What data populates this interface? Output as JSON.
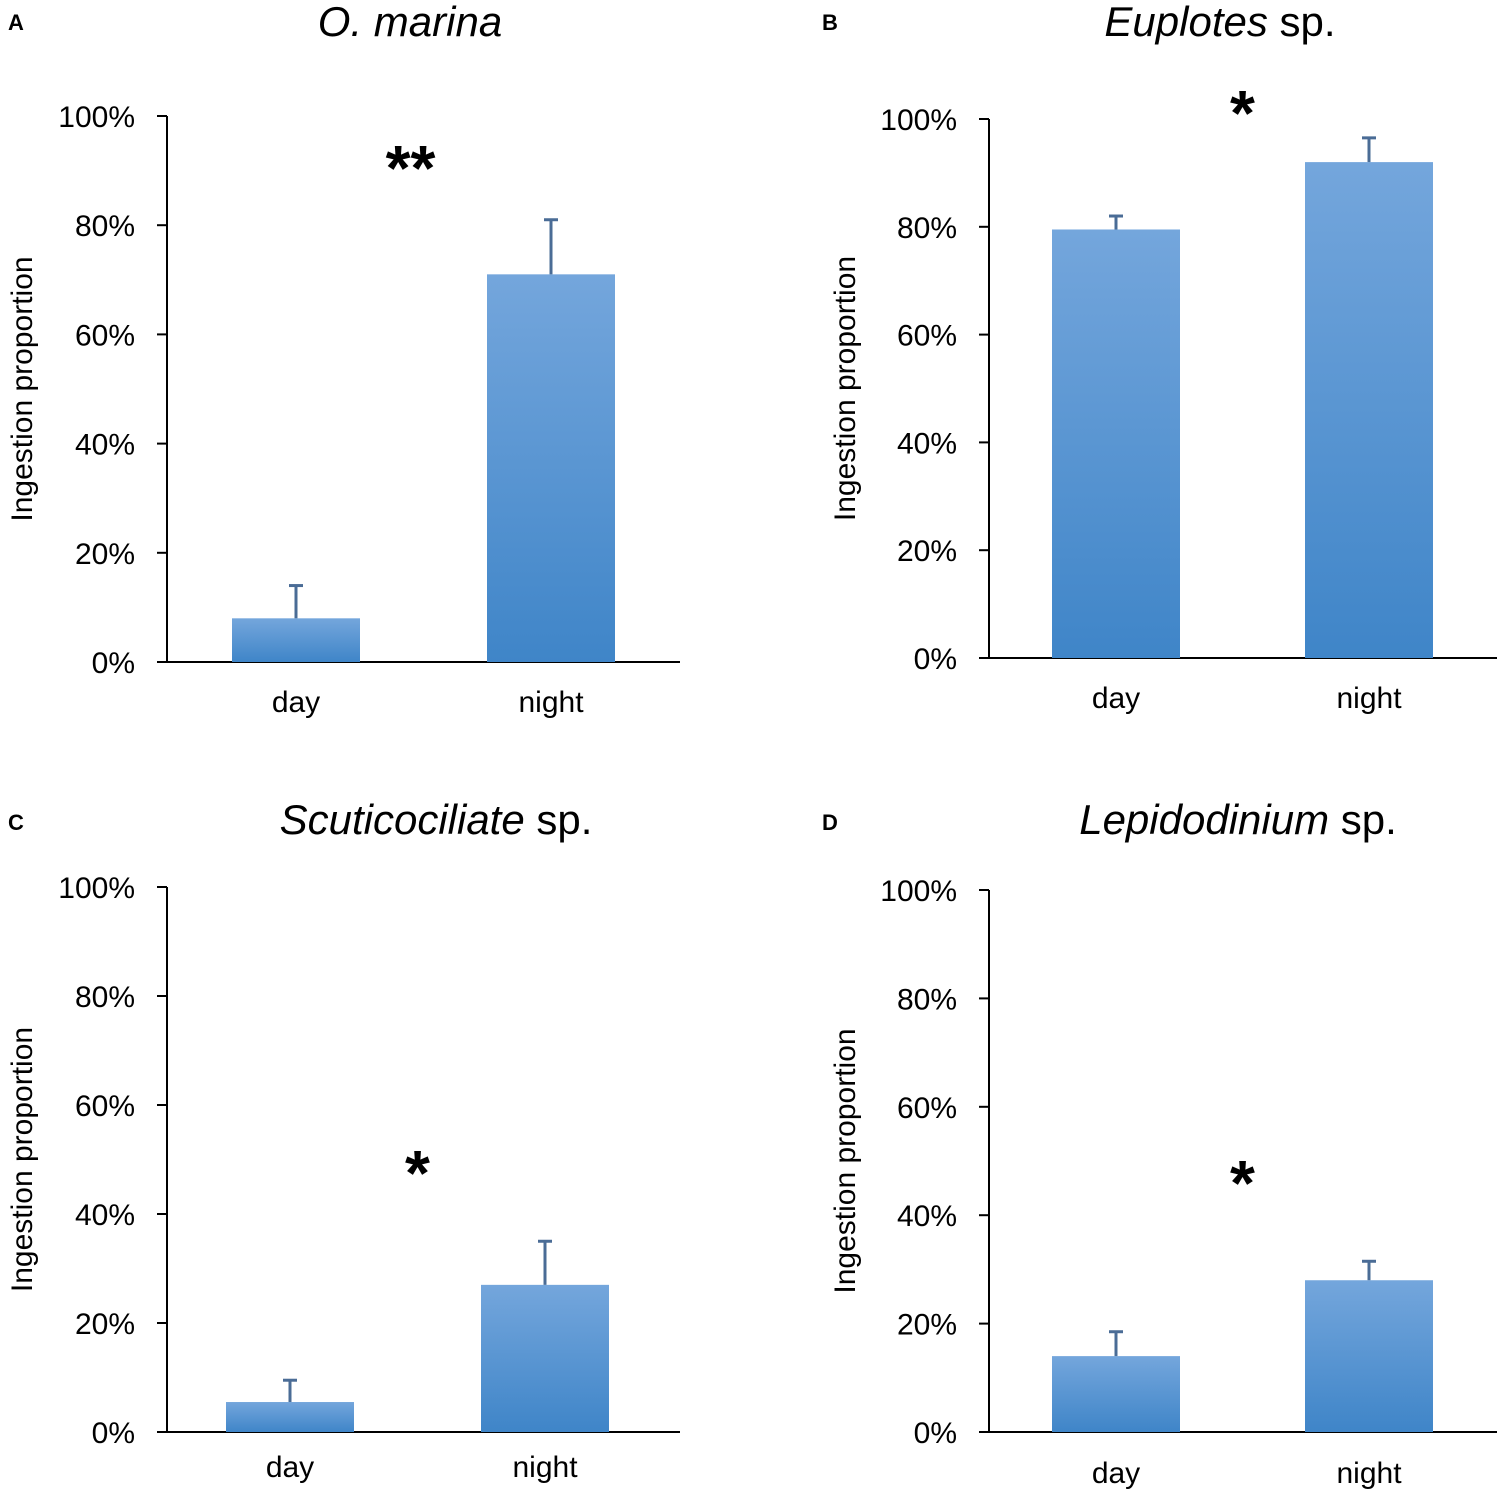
{
  "colors": {
    "bar_top": "#74a6dc",
    "bar_bottom": "#3f85c8",
    "error_bar": "#4a6c96",
    "axis": "#000000"
  },
  "chart_data": [
    {
      "type": "bar",
      "panel": "A",
      "title_italic": "O. marina",
      "title_rest": "",
      "ylabel": "Ingestion proportion",
      "xlabel": "",
      "categories": [
        "day",
        "night"
      ],
      "values": [
        8,
        71
      ],
      "errors": [
        6,
        10
      ],
      "ylim": [
        0,
        100
      ],
      "yticks": [
        "0%",
        "20%",
        "40%",
        "60%",
        "80%",
        "100%"
      ],
      "significance": "**"
    },
    {
      "type": "bar",
      "panel": "B",
      "title_italic": "Euplotes",
      "title_rest": " sp.",
      "ylabel": "Ingestion proportion",
      "xlabel": "",
      "categories": [
        "day",
        "night"
      ],
      "values": [
        79.5,
        92
      ],
      "errors": [
        2.5,
        4.5
      ],
      "ylim": [
        0,
        100
      ],
      "yticks": [
        "0%",
        "20%",
        "40%",
        "60%",
        "80%",
        "100%"
      ],
      "significance": "*"
    },
    {
      "type": "bar",
      "panel": "C",
      "title_italic": "Scuticociliate",
      "title_rest": " sp.",
      "ylabel": "Ingestion proportion",
      "xlabel": "",
      "categories": [
        "day",
        "night"
      ],
      "values": [
        5.5,
        27
      ],
      "errors": [
        4,
        8
      ],
      "ylim": [
        0,
        100
      ],
      "yticks": [
        "0%",
        "20%",
        "40%",
        "60%",
        "80%",
        "100%"
      ],
      "significance": "*"
    },
    {
      "type": "bar",
      "panel": "D",
      "title_italic": "Lepidodinium",
      "title_rest": " sp.",
      "ylabel": "Ingestion proportion",
      "xlabel": "",
      "categories": [
        "day",
        "night"
      ],
      "values": [
        14,
        28
      ],
      "errors": [
        4.5,
        3.5
      ],
      "ylim": [
        0,
        100
      ],
      "yticks": [
        "0%",
        "20%",
        "40%",
        "60%",
        "80%",
        "100%"
      ],
      "significance": "*"
    }
  ]
}
